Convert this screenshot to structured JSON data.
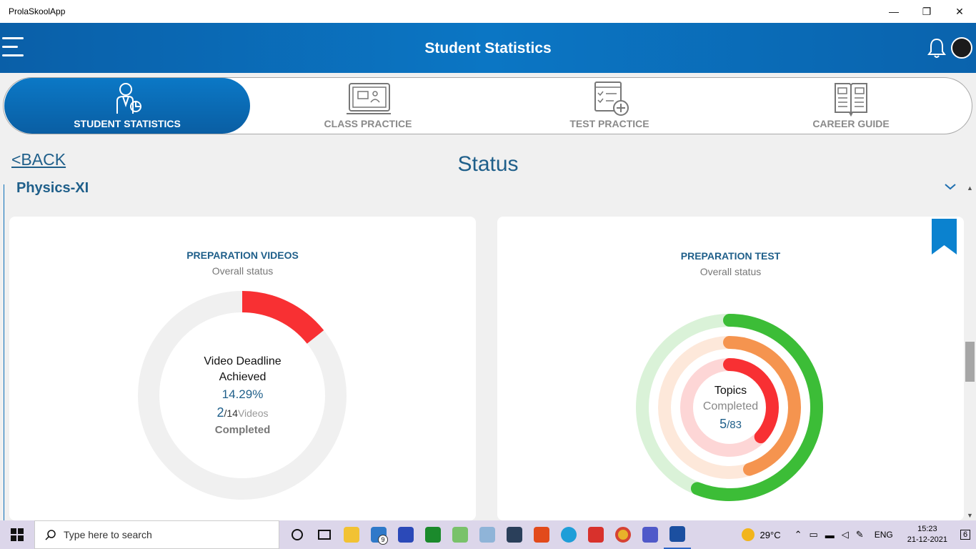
{
  "window": {
    "title": "ProlaSkoolApp",
    "minimize": "—",
    "maximize": "❐",
    "close": "✕"
  },
  "header": {
    "title": "Student Statistics"
  },
  "tabs": [
    {
      "label": "STUDENT STATISTICS",
      "active": true
    },
    {
      "label": "CLASS PRACTICE",
      "active": false
    },
    {
      "label": "TEST PRACTICE",
      "active": false
    },
    {
      "label": "CAREER GUIDE",
      "active": false
    }
  ],
  "nav": {
    "back_label": "<BACK",
    "page_title": "Status"
  },
  "subject": {
    "name": "Physics-XI"
  },
  "videos_card": {
    "title": "PREPARATION VIDEOS",
    "subtitle": "Overall status",
    "line1": "Video Deadline",
    "line2": "Achieved",
    "percent": "14.29%",
    "completed": "2",
    "total": "/14",
    "unit": "Videos",
    "completed_label": "Completed",
    "progress_fraction": 0.1429,
    "colors": {
      "track": "#f0f0f0",
      "progress": "#f83033"
    }
  },
  "test_card": {
    "title": "PREPARATION TEST",
    "subtitle": "Overall status",
    "line1": "Topics",
    "line2": "Completed",
    "completed": "5",
    "total": "/83",
    "rings": [
      {
        "name": "outer",
        "fraction": 0.56,
        "color": "#3cbd37",
        "track": "#daf2d8"
      },
      {
        "name": "middle",
        "fraction": 0.45,
        "color": "#f5944f",
        "track": "#fde8da"
      },
      {
        "name": "inner",
        "fraction": 0.37,
        "color": "#f83033",
        "track": "#fdd6d6"
      }
    ]
  },
  "taskbar": {
    "search_placeholder": "Type here to search",
    "mail_badge": "9",
    "weather": "29°C",
    "language": "ENG",
    "time": "15:23",
    "date": "21-12-2021",
    "notification_count": "6"
  },
  "colors": {
    "brand": "#0b6fb8",
    "title_blue": "#1f5f8a"
  }
}
